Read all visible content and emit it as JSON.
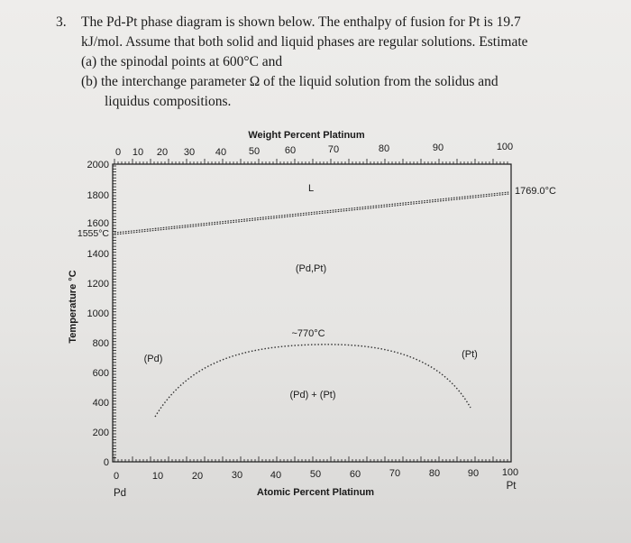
{
  "problem": {
    "number": "3.",
    "lines": [
      "The Pd-Pt phase diagram is shown below. The enthalpy of fusion for Pt is 19.7",
      "kJ/mol. Assume that both solid and liquid phases are regular solutions. Estimate",
      "(a) the spinodal points at 600°C and",
      "(b) the interchange parameter Ω of the liquid solution from the solidus and",
      "liquidus compositions."
    ]
  },
  "diagram": {
    "top_axis_title": "Weight Percent Platinum",
    "top_ticks": [
      "0",
      "10",
      "20",
      "30",
      "40",
      "50",
      "60",
      "70",
      "80",
      "90",
      "100"
    ],
    "bottom_axis_title": "Atomic Percent Platinum",
    "bottom_ticks": [
      "0",
      "10",
      "20",
      "30",
      "40",
      "50",
      "60",
      "70",
      "80",
      "90",
      "100"
    ],
    "left_end_label": "Pd",
    "right_end_label": "Pt",
    "y_axis_title": "Temperature °C",
    "y_ticks": [
      "2000",
      "1800",
      "1600",
      "1400",
      "1200",
      "1000",
      "800",
      "600",
      "400",
      "200",
      "0"
    ],
    "pd_melting_label": "1555°C",
    "pt_melting_label": "1769.0°C",
    "region_liquid": "L",
    "region_solid_solution": "(Pd,Pt)",
    "critical_label": "~770°C",
    "region_pd": "(Pd)",
    "region_pt": "(Pt)",
    "region_two_phase": "(Pd) + (Pt)"
  }
}
